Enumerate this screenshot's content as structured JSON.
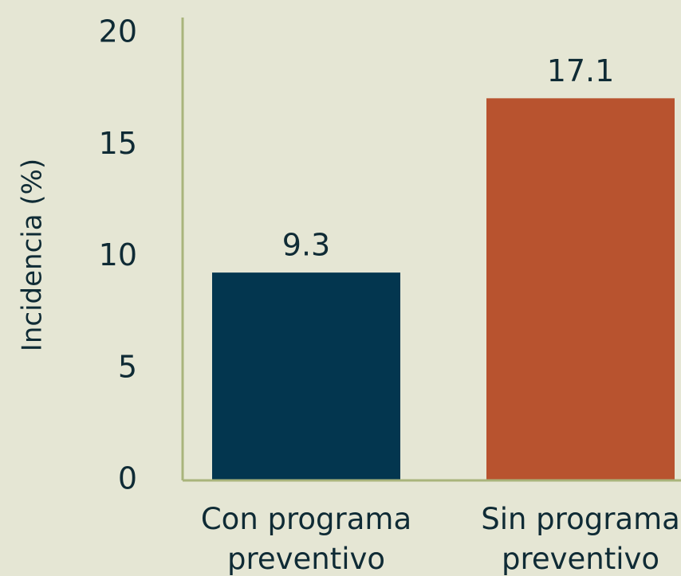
{
  "chart_data": {
    "type": "bar",
    "y_label": "Incidencia (%)",
    "categories": [
      "Con programa preventivo",
      "Sin programa preventivo"
    ],
    "values": [
      9.3,
      17.1
    ],
    "colors": [
      "#03364f",
      "#b8532f"
    ],
    "ylim": [
      0,
      20
    ],
    "yticks": [
      0,
      5,
      10,
      15,
      20
    ],
    "grid": false
  }
}
